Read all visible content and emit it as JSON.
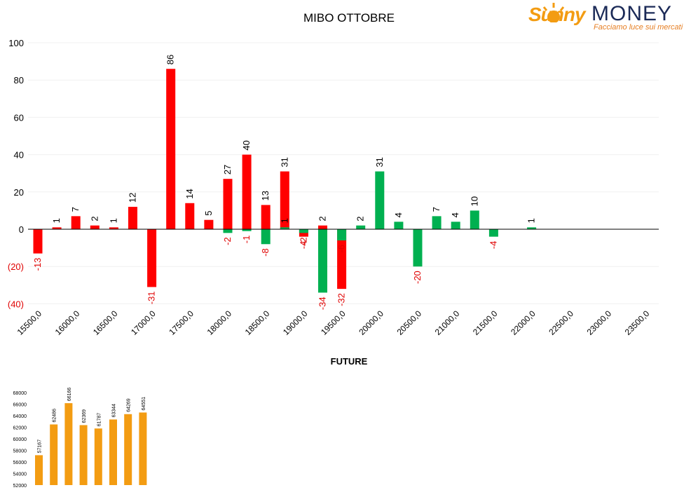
{
  "title": "MIBO OTTOBRE",
  "logo": {
    "brand_left": "Sunny",
    "brand_right": "MONEY",
    "tagline": "Facciamo luce sui mercati"
  },
  "colors": {
    "red": "#ff0000",
    "green": "#00b050",
    "orange": "#f39c12",
    "neg_label": "#e00000"
  },
  "chart_data": [
    {
      "type": "bar",
      "title": "MIBO OTTOBRE",
      "xlabel": "FUTURE",
      "ylabel": "",
      "ylim": [
        -40,
        100
      ],
      "yticks": [
        "(40)",
        "(20)",
        "0",
        "20",
        "40",
        "60",
        "80",
        "100"
      ],
      "ytick_values": [
        -40,
        -20,
        0,
        20,
        40,
        60,
        80,
        100
      ],
      "categories": [
        "15500,0",
        "16000,0",
        "16500,0",
        "17000,0",
        "17500,0",
        "18000,0",
        "18500,0",
        "19000,0",
        "19500,0",
        "20000,0",
        "20500,0",
        "21000,0",
        "21500,0",
        "22000,0",
        "22500,0",
        "23000,0",
        "23500,0"
      ],
      "series": [
        {
          "color": "#ff0000",
          "bars": [
            {
              "x": 15500,
              "value": -13,
              "label": "-13"
            },
            {
              "x": 15750,
              "value": 1,
              "label": "1"
            },
            {
              "x": 16000,
              "value": 7,
              "label": "7"
            },
            {
              "x": 16250,
              "value": 2,
              "label": "2"
            },
            {
              "x": 16500,
              "value": 1,
              "label": "1"
            },
            {
              "x": 16750,
              "value": 12,
              "label": "12"
            },
            {
              "x": 17000,
              "value": -31,
              "label": "-31"
            },
            {
              "x": 17250,
              "value": 86,
              "label": "86"
            },
            {
              "x": 17500,
              "value": 14,
              "label": "14"
            },
            {
              "x": 17750,
              "value": 5,
              "label": "5"
            },
            {
              "x": 18000,
              "value": 27,
              "label": "27"
            },
            {
              "x": 18250,
              "value": 40,
              "label": "40"
            },
            {
              "x": 18500,
              "value": 13,
              "label": "13"
            },
            {
              "x": 18750,
              "value": 31,
              "label": "31"
            },
            {
              "x": 19000,
              "value": -4,
              "label": "-4"
            },
            {
              "x": 19250,
              "value": 2,
              "label": "2"
            },
            {
              "x": 19500,
              "value": -32,
              "label": "-32"
            }
          ]
        },
        {
          "color": "#00b050",
          "bars": [
            {
              "x": 18000,
              "value": -2,
              "label": "-2"
            },
            {
              "x": 18250,
              "value": -1,
              "label": "-1"
            },
            {
              "x": 18500,
              "value": -8,
              "label": "-8"
            },
            {
              "x": 18750,
              "value": 1,
              "label": "1"
            },
            {
              "x": 19000,
              "value": -2,
              "label": "-2"
            },
            {
              "x": 19250,
              "value": -34,
              "label": "-34"
            },
            {
              "x": 19500,
              "value": -6,
              "label": "-6"
            },
            {
              "x": 19750,
              "value": 2,
              "label": "2"
            },
            {
              "x": 20000,
              "value": 31,
              "label": "31"
            },
            {
              "x": 20250,
              "value": 4,
              "label": "4"
            },
            {
              "x": 20500,
              "value": -20,
              "label": "-20"
            },
            {
              "x": 20750,
              "value": 7,
              "label": "7"
            },
            {
              "x": 21000,
              "value": 4,
              "label": "4"
            },
            {
              "x": 21250,
              "value": 10,
              "label": "10"
            },
            {
              "x": 21500,
              "value": -4,
              "label": "-4"
            },
            {
              "x": 22000,
              "value": 1,
              "label": "1"
            }
          ]
        }
      ]
    },
    {
      "type": "bar",
      "title": "",
      "ylim": [
        52000,
        68000
      ],
      "yticks": [
        "52000",
        "54000",
        "56000",
        "58000",
        "60000",
        "62000",
        "64000",
        "66000",
        "68000"
      ],
      "ytick_values": [
        52000,
        54000,
        56000,
        58000,
        60000,
        62000,
        64000,
        66000,
        68000
      ],
      "values": [
        57167,
        62486,
        66166,
        62369,
        61787,
        63344,
        64269,
        64551
      ],
      "labels": [
        "57167",
        "62486",
        "66166",
        "62369",
        "61787",
        "63344",
        "64269",
        "64551"
      ],
      "color": "#f39c12"
    }
  ]
}
